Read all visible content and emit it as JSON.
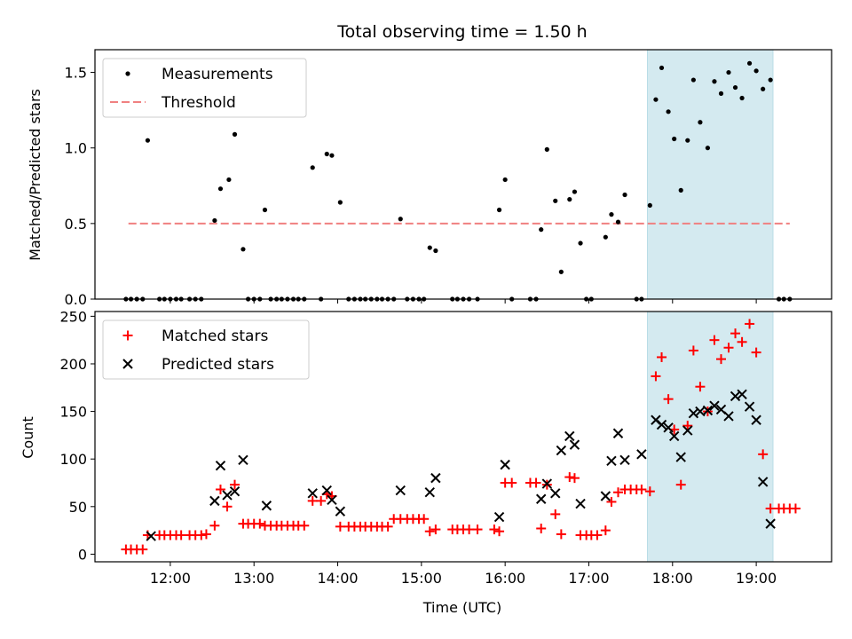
{
  "figure": {
    "title": "Total observing time = 1.50 h"
  },
  "chart_data": [
    {
      "type": "scatter",
      "ylabel": "Matched/Predicted stars",
      "xlim": [
        11.1,
        19.9
      ],
      "ylim": [
        0,
        1.65
      ],
      "yticks": [
        0.0,
        0.5,
        1.0,
        1.5
      ],
      "ytick_labels": [
        "0.0",
        "0.5",
        "1.0",
        "1.5"
      ],
      "highlight_span": {
        "x": [
          17.7,
          19.2
        ],
        "color": "#d4eaf0"
      },
      "legend": {
        "placement": "upper-left",
        "entries": [
          {
            "label": "Measurements",
            "marker": "dot",
            "color": "#000000"
          },
          {
            "label": "Threshold",
            "marker": "dashed-line",
            "color": "#f08080"
          }
        ]
      },
      "threshold": {
        "value": 0.5,
        "x": [
          11.5,
          19.4
        ],
        "color": "#f08080"
      },
      "series": [
        {
          "marker": "dot",
          "color": "#000000",
          "points": [
            [
              11.47,
              0
            ],
            [
              11.53,
              0
            ],
            [
              11.6,
              0
            ],
            [
              11.67,
              0
            ],
            [
              11.73,
              1.05
            ],
            [
              11.87,
              0
            ],
            [
              11.93,
              0
            ],
            [
              12.0,
              0
            ],
            [
              12.07,
              0
            ],
            [
              12.13,
              0
            ],
            [
              12.23,
              0
            ],
            [
              12.3,
              0
            ],
            [
              12.37,
              0
            ],
            [
              12.53,
              0.52
            ],
            [
              12.6,
              0.73
            ],
            [
              12.7,
              0.79
            ],
            [
              12.77,
              1.09
            ],
            [
              12.87,
              0.33
            ],
            [
              12.93,
              0
            ],
            [
              13.0,
              0
            ],
            [
              13.07,
              0
            ],
            [
              13.13,
              0.59
            ],
            [
              13.2,
              0
            ],
            [
              13.27,
              0
            ],
            [
              13.33,
              0
            ],
            [
              13.4,
              0
            ],
            [
              13.47,
              0
            ],
            [
              13.53,
              0
            ],
            [
              13.6,
              0
            ],
            [
              13.7,
              0.87
            ],
            [
              13.8,
              0
            ],
            [
              13.87,
              0.96
            ],
            [
              13.93,
              0.95
            ],
            [
              14.03,
              0.64
            ],
            [
              14.13,
              0
            ],
            [
              14.2,
              0
            ],
            [
              14.27,
              0
            ],
            [
              14.33,
              0
            ],
            [
              14.4,
              0
            ],
            [
              14.47,
              0
            ],
            [
              14.53,
              0
            ],
            [
              14.6,
              0
            ],
            [
              14.67,
              0
            ],
            [
              14.75,
              0.53
            ],
            [
              14.83,
              0
            ],
            [
              14.9,
              0
            ],
            [
              14.97,
              0
            ],
            [
              15.03,
              0
            ],
            [
              15.1,
              0.34
            ],
            [
              15.17,
              0.32
            ],
            [
              15.37,
              0
            ],
            [
              15.43,
              0
            ],
            [
              15.5,
              0
            ],
            [
              15.57,
              0
            ],
            [
              15.67,
              0
            ],
            [
              15.93,
              0.59
            ],
            [
              16.0,
              0.79
            ],
            [
              16.08,
              0
            ],
            [
              16.3,
              0
            ],
            [
              16.37,
              0
            ],
            [
              16.43,
              0.46
            ],
            [
              16.5,
              0.99
            ],
            [
              16.6,
              0.65
            ],
            [
              16.67,
              0.18
            ],
            [
              16.77,
              0.66
            ],
            [
              16.83,
              0.71
            ],
            [
              16.9,
              0.37
            ],
            [
              16.97,
              0
            ],
            [
              17.03,
              0
            ],
            [
              17.2,
              0.41
            ],
            [
              17.27,
              0.56
            ],
            [
              17.35,
              0.51
            ],
            [
              17.43,
              0.69
            ],
            [
              17.57,
              0
            ],
            [
              17.63,
              0
            ],
            [
              17.73,
              0.62
            ],
            [
              17.8,
              1.32
            ],
            [
              17.87,
              1.53
            ],
            [
              17.95,
              1.24
            ],
            [
              18.02,
              1.06
            ],
            [
              18.1,
              0.72
            ],
            [
              18.18,
              1.05
            ],
            [
              18.25,
              1.45
            ],
            [
              18.33,
              1.17
            ],
            [
              18.42,
              1.0
            ],
            [
              18.5,
              1.44
            ],
            [
              18.58,
              1.36
            ],
            [
              18.67,
              1.5
            ],
            [
              18.75,
              1.4
            ],
            [
              18.83,
              1.33
            ],
            [
              18.92,
              1.56
            ],
            [
              19.0,
              1.51
            ],
            [
              19.08,
              1.39
            ],
            [
              19.17,
              1.45
            ],
            [
              19.27,
              0
            ],
            [
              19.33,
              0
            ],
            [
              19.4,
              0
            ]
          ]
        }
      ]
    },
    {
      "type": "scatter",
      "xlabel": "Time (UTC)",
      "ylabel": "Count",
      "xlim": [
        11.1,
        19.9
      ],
      "ylim": [
        -8,
        255
      ],
      "xticks": [
        12,
        13,
        14,
        15,
        16,
        17,
        18,
        19
      ],
      "xtick_labels": [
        "12:00",
        "13:00",
        "14:00",
        "15:00",
        "16:00",
        "17:00",
        "18:00",
        "19:00"
      ],
      "yticks": [
        0,
        50,
        100,
        150,
        200,
        250
      ],
      "ytick_labels": [
        "0",
        "50",
        "100",
        "150",
        "200",
        "250"
      ],
      "highlight_span": {
        "x": [
          17.7,
          19.2
        ],
        "color": "#d4eaf0"
      },
      "legend": {
        "placement": "upper-left",
        "entries": [
          {
            "label": "Matched stars",
            "marker": "plus",
            "color": "#ff0000"
          },
          {
            "label": "Predicted stars",
            "marker": "cross",
            "color": "#000000"
          }
        ]
      },
      "series": [
        {
          "name": "Matched stars",
          "marker": "plus",
          "color": "#ff0000",
          "points": [
            [
              11.47,
              5
            ],
            [
              11.53,
              5
            ],
            [
              11.6,
              5
            ],
            [
              11.67,
              5
            ],
            [
              11.73,
              20
            ],
            [
              11.87,
              20
            ],
            [
              11.93,
              20
            ],
            [
              12.0,
              20
            ],
            [
              12.07,
              20
            ],
            [
              12.13,
              20
            ],
            [
              12.23,
              20
            ],
            [
              12.3,
              20
            ],
            [
              12.37,
              20
            ],
            [
              12.43,
              21
            ],
            [
              12.53,
              30
            ],
            [
              12.6,
              68
            ],
            [
              12.68,
              50
            ],
            [
              12.77,
              73
            ],
            [
              12.87,
              32
            ],
            [
              12.93,
              32
            ],
            [
              13.0,
              32
            ],
            [
              13.07,
              32
            ],
            [
              13.13,
              30
            ],
            [
              13.2,
              30
            ],
            [
              13.27,
              30
            ],
            [
              13.33,
              30
            ],
            [
              13.4,
              30
            ],
            [
              13.47,
              30
            ],
            [
              13.53,
              30
            ],
            [
              13.6,
              30
            ],
            [
              13.7,
              56
            ],
            [
              13.8,
              56
            ],
            [
              13.87,
              63
            ],
            [
              13.93,
              61
            ],
            [
              14.03,
              29
            ],
            [
              14.13,
              29
            ],
            [
              14.2,
              29
            ],
            [
              14.27,
              29
            ],
            [
              14.33,
              29
            ],
            [
              14.4,
              29
            ],
            [
              14.47,
              29
            ],
            [
              14.53,
              29
            ],
            [
              14.6,
              29
            ],
            [
              14.67,
              37
            ],
            [
              14.75,
              37
            ],
            [
              14.83,
              37
            ],
            [
              14.9,
              37
            ],
            [
              14.97,
              37
            ],
            [
              15.03,
              37
            ],
            [
              15.1,
              24
            ],
            [
              15.17,
              26
            ],
            [
              15.37,
              26
            ],
            [
              15.43,
              26
            ],
            [
              15.5,
              26
            ],
            [
              15.57,
              26
            ],
            [
              15.67,
              26
            ],
            [
              15.87,
              26
            ],
            [
              15.93,
              24
            ],
            [
              16.0,
              75
            ],
            [
              16.08,
              75
            ],
            [
              16.3,
              75
            ],
            [
              16.37,
              75
            ],
            [
              16.43,
              27
            ],
            [
              16.5,
              73
            ],
            [
              16.6,
              42
            ],
            [
              16.67,
              21
            ],
            [
              16.77,
              81
            ],
            [
              16.83,
              80
            ],
            [
              16.9,
              20
            ],
            [
              16.97,
              20
            ],
            [
              17.03,
              20
            ],
            [
              17.1,
              20
            ],
            [
              17.2,
              25
            ],
            [
              17.27,
              55
            ],
            [
              17.35,
              65
            ],
            [
              17.43,
              68
            ],
            [
              17.5,
              68
            ],
            [
              17.57,
              68
            ],
            [
              17.63,
              68
            ],
            [
              17.73,
              66
            ],
            [
              17.8,
              187
            ],
            [
              17.87,
              207
            ],
            [
              17.95,
              163
            ],
            [
              18.02,
              131
            ],
            [
              18.1,
              73
            ],
            [
              18.18,
              135
            ],
            [
              18.25,
              214
            ],
            [
              18.33,
              176
            ],
            [
              18.42,
              150
            ],
            [
              18.5,
              225
            ],
            [
              18.58,
              205
            ],
            [
              18.67,
              217
            ],
            [
              18.75,
              232
            ],
            [
              18.83,
              223
            ],
            [
              18.92,
              242
            ],
            [
              19.0,
              212
            ],
            [
              19.08,
              105
            ],
            [
              19.17,
              48
            ],
            [
              19.27,
              48
            ],
            [
              19.33,
              48
            ],
            [
              19.4,
              48
            ],
            [
              19.47,
              48
            ]
          ]
        },
        {
          "name": "Predicted stars",
          "marker": "cross",
          "color": "#000000",
          "points": [
            [
              11.77,
              19
            ],
            [
              12.53,
              56
            ],
            [
              12.6,
              93
            ],
            [
              12.68,
              62
            ],
            [
              12.77,
              66
            ],
            [
              12.87,
              99
            ],
            [
              13.15,
              51
            ],
            [
              13.7,
              64
            ],
            [
              13.87,
              67
            ],
            [
              13.93,
              57
            ],
            [
              14.03,
              45
            ],
            [
              14.75,
              67
            ],
            [
              15.1,
              65
            ],
            [
              15.17,
              80
            ],
            [
              15.93,
              39
            ],
            [
              16.0,
              94
            ],
            [
              16.43,
              58
            ],
            [
              16.5,
              74
            ],
            [
              16.6,
              64
            ],
            [
              16.67,
              109
            ],
            [
              16.77,
              124
            ],
            [
              16.83,
              115
            ],
            [
              16.9,
              53
            ],
            [
              17.2,
              61
            ],
            [
              17.27,
              98
            ],
            [
              17.35,
              127
            ],
            [
              17.43,
              99
            ],
            [
              17.63,
              105
            ],
            [
              17.8,
              141
            ],
            [
              17.87,
              136
            ],
            [
              17.95,
              133
            ],
            [
              18.02,
              124
            ],
            [
              18.1,
              102
            ],
            [
              18.18,
              130
            ],
            [
              18.25,
              148
            ],
            [
              18.33,
              150
            ],
            [
              18.42,
              151
            ],
            [
              18.5,
              156
            ],
            [
              18.58,
              152
            ],
            [
              18.67,
              145
            ],
            [
              18.75,
              166
            ],
            [
              18.83,
              168
            ],
            [
              18.92,
              155
            ],
            [
              19.0,
              141
            ],
            [
              19.08,
              76
            ],
            [
              19.17,
              32
            ]
          ]
        }
      ]
    }
  ]
}
